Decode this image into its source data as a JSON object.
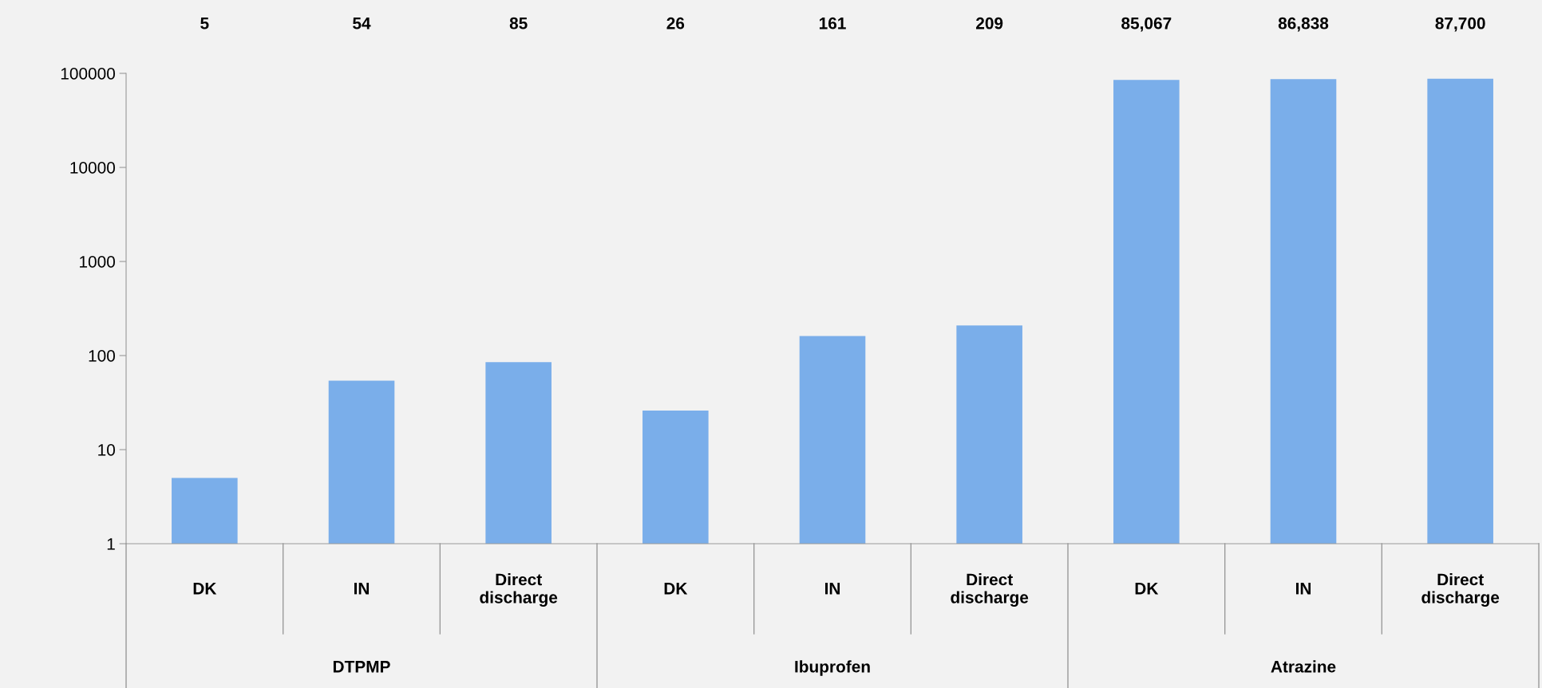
{
  "chart_data": {
    "type": "bar",
    "categories": [
      "DK",
      "IN",
      "Direct discharge",
      "DK",
      "IN",
      "Direct discharge",
      "DK",
      "IN",
      "Direct discharge"
    ],
    "values": [
      5,
      54,
      85,
      26,
      161,
      209,
      85067,
      86838,
      87700
    ],
    "value_labels": [
      "5",
      "54",
      "85",
      "26",
      "161",
      "209",
      "85,067",
      "86,838",
      "87,700"
    ],
    "color": "#7aaeea",
    "log": true,
    "ylim": [
      1,
      100000
    ],
    "yticks": [
      1,
      10,
      100,
      1000,
      10000,
      100000
    ],
    "grid": false,
    "annotations": [
      "DTPMP",
      "Ibuprofen",
      "Atrazine"
    ]
  }
}
